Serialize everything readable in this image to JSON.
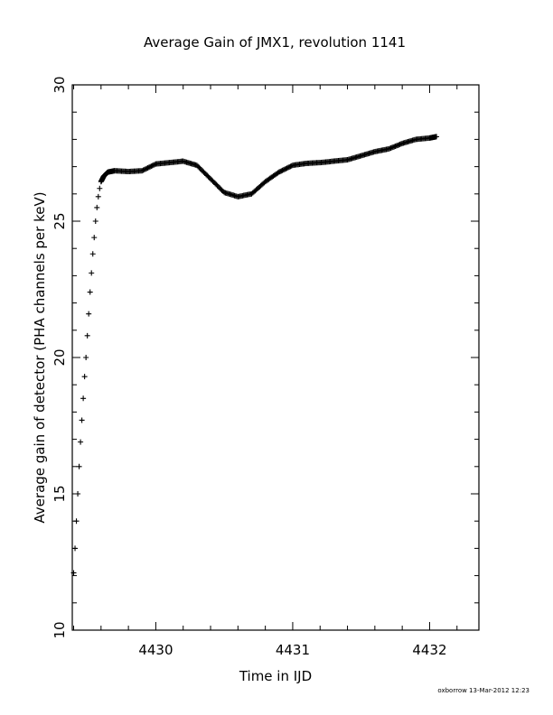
{
  "chart_data": {
    "type": "scatter",
    "title": "Average Gain of JMX1, revolution 1141",
    "xlabel": "Time in IJD",
    "ylabel": "Average gain of detector (PHA channels per keV)",
    "xlim": [
      4429.39,
      4432.36
    ],
    "ylim": [
      10,
      30
    ],
    "x_ticks": [
      "4430",
      "4431",
      "4432"
    ],
    "y_ticks": [
      "10",
      "15",
      "20",
      "25",
      "30"
    ],
    "grid": false,
    "marker": "plus",
    "series": [
      {
        "points": [
          [
            4429.4,
            12.1
          ],
          [
            4429.41,
            13.0
          ],
          [
            4429.42,
            14.0
          ],
          [
            4429.43,
            15.0
          ],
          [
            4429.44,
            16.0
          ],
          [
            4429.45,
            16.9
          ],
          [
            4429.46,
            17.7
          ],
          [
            4429.47,
            18.5
          ],
          [
            4429.48,
            19.3
          ],
          [
            4429.49,
            20.0
          ],
          [
            4429.5,
            20.8
          ],
          [
            4429.51,
            21.6
          ],
          [
            4429.52,
            22.4
          ],
          [
            4429.53,
            23.1
          ],
          [
            4429.54,
            23.8
          ],
          [
            4429.55,
            24.4
          ],
          [
            4429.56,
            25.0
          ],
          [
            4429.57,
            25.5
          ],
          [
            4429.58,
            25.9
          ],
          [
            4429.59,
            26.2
          ],
          [
            4429.6,
            26.45
          ],
          [
            4429.62,
            26.65
          ],
          [
            4429.65,
            26.8
          ],
          [
            4429.7,
            26.85
          ],
          [
            4429.8,
            26.82
          ],
          [
            4429.9,
            26.85
          ],
          [
            4430.0,
            27.1
          ],
          [
            4430.1,
            27.15
          ],
          [
            4430.2,
            27.2
          ],
          [
            4430.3,
            27.05
          ],
          [
            4430.4,
            26.55
          ],
          [
            4430.5,
            26.05
          ],
          [
            4430.6,
            25.9
          ],
          [
            4430.7,
            26.0
          ],
          [
            4430.8,
            26.45
          ],
          [
            4430.9,
            26.8
          ],
          [
            4431.0,
            27.05
          ],
          [
            4431.1,
            27.12
          ],
          [
            4431.2,
            27.15
          ],
          [
            4431.3,
            27.2
          ],
          [
            4431.4,
            27.25
          ],
          [
            4431.5,
            27.4
          ],
          [
            4431.6,
            27.55
          ],
          [
            4431.7,
            27.65
          ],
          [
            4431.8,
            27.85
          ],
          [
            4431.9,
            28.0
          ],
          [
            4432.0,
            28.05
          ],
          [
            4432.05,
            28.1
          ]
        ]
      }
    ]
  },
  "footer": "oxborrow 13-Mar-2012 12:23"
}
